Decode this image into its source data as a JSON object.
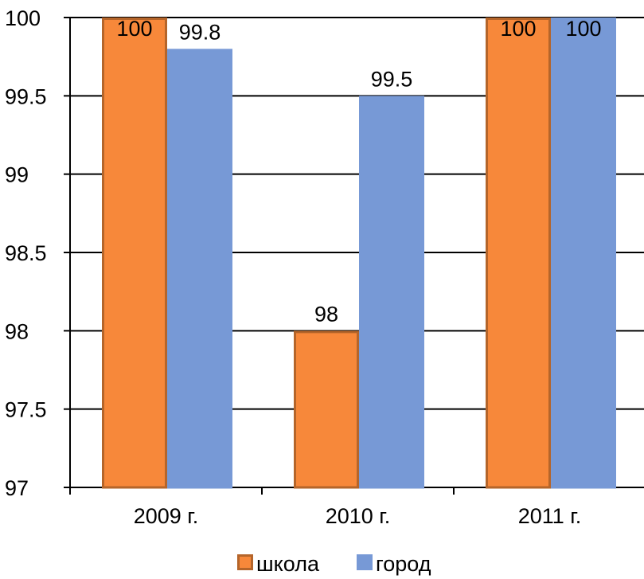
{
  "chart_data": {
    "type": "bar",
    "title": "",
    "xlabel": "",
    "ylabel": "",
    "categories": [
      "2009 г.",
      "2010 г.",
      "2011 г."
    ],
    "series": [
      {
        "name": "школа",
        "values": [
          100,
          98,
          100
        ],
        "color": "#F7883A",
        "border_color": "#B5652A"
      },
      {
        "name": "город",
        "values": [
          99.8,
          99.5,
          100
        ],
        "color": "#7799D6",
        "border_color": "#7799D6"
      }
    ],
    "ylim": [
      97,
      100
    ],
    "yticks": [
      97,
      97.5,
      98,
      98.5,
      99,
      99.5,
      100
    ],
    "ytick_labels": [
      "97",
      "97.5",
      "98",
      "98.5",
      "99",
      "99.5",
      "100"
    ],
    "data_labels": [
      [
        "100",
        "98",
        "100"
      ],
      [
        "99.8",
        "99.5",
        "100"
      ]
    ],
    "grid": "horizontal",
    "legend_position": "bottom"
  }
}
